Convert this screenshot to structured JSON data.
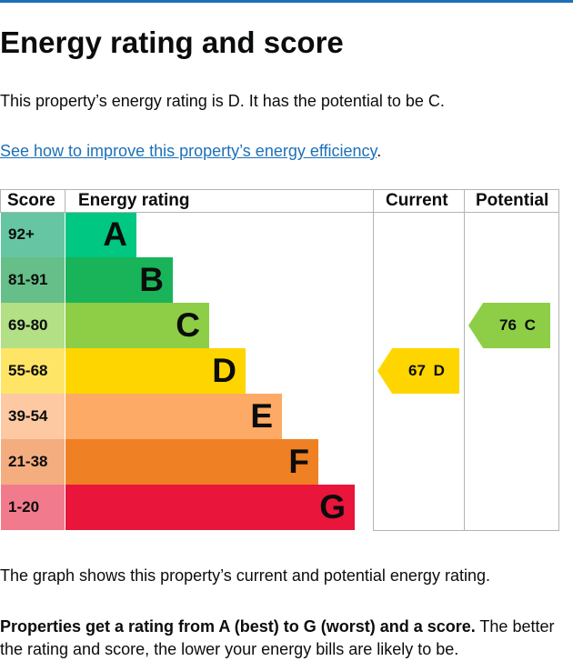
{
  "page": {
    "title": "Energy rating and score",
    "intro": "This property’s energy rating is D. It has the potential to be C.",
    "improve_link": "See how to improve this property’s energy efficiency",
    "improve_link_suffix": ".",
    "graph_caption": "The graph shows this property’s current and potential energy rating.",
    "rating_explainer_bold": "Properties get a rating from A (best) to G (worst) and a score.",
    "rating_explainer_rest": " The better the rating and score, the lower your energy bills are likely to be."
  },
  "chart": {
    "headers": {
      "score": "Score",
      "rating": "Energy rating",
      "current": "Current",
      "potential": "Potential"
    },
    "bands": [
      {
        "score": "92+",
        "letter": "A",
        "score_bg": "#66c6a3",
        "color": "#00c781",
        "relative_length": 1
      },
      {
        "score": "81-91",
        "letter": "B",
        "score_bg": "#66be88",
        "color": "#19b459",
        "relative_length": 2
      },
      {
        "score": "69-80",
        "letter": "C",
        "score_bg": "#b3df85",
        "color": "#8dce46",
        "relative_length": 3
      },
      {
        "score": "55-68",
        "letter": "D",
        "score_bg": "#ffe566",
        "color": "#ffd500",
        "relative_length": 4
      },
      {
        "score": "39-54",
        "letter": "E",
        "score_bg": "#fcc9a3",
        "color": "#fcaa65",
        "relative_length": 5
      },
      {
        "score": "21-38",
        "letter": "F",
        "score_bg": "#f4ad7f",
        "color": "#ef8023",
        "relative_length": 6
      },
      {
        "score": "1-20",
        "letter": "G",
        "score_bg": "#f17b8c",
        "color": "#e9153b",
        "relative_length": 7
      }
    ],
    "current": {
      "label": "67 D",
      "band_index": 3,
      "color": "#ffd500"
    },
    "potential": {
      "label": "76 C",
      "band_index": 2,
      "color": "#8dce46"
    }
  }
}
